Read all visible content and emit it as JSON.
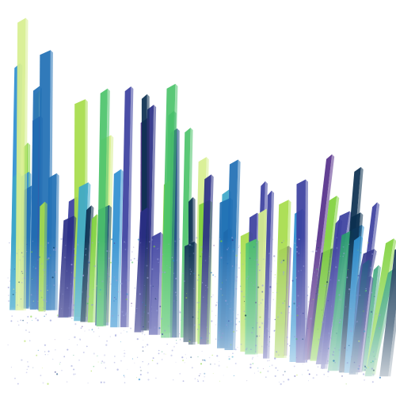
{
  "artwork": {
    "subject": "generative-bar-field",
    "palette": [
      "#0b2f4f",
      "#12477a",
      "#1f6fb4",
      "#2f8fd0",
      "#3da7c9",
      "#2a9d6f",
      "#4cc36a",
      "#7fd13b",
      "#a6dc4a",
      "#d7ef8f",
      "#55308a",
      "#3b3f9e",
      "#2a2f86"
    ],
    "background": "#ffffff",
    "mist_color": "#9aa0d8",
    "bar_count": 70,
    "seed": 7
  }
}
